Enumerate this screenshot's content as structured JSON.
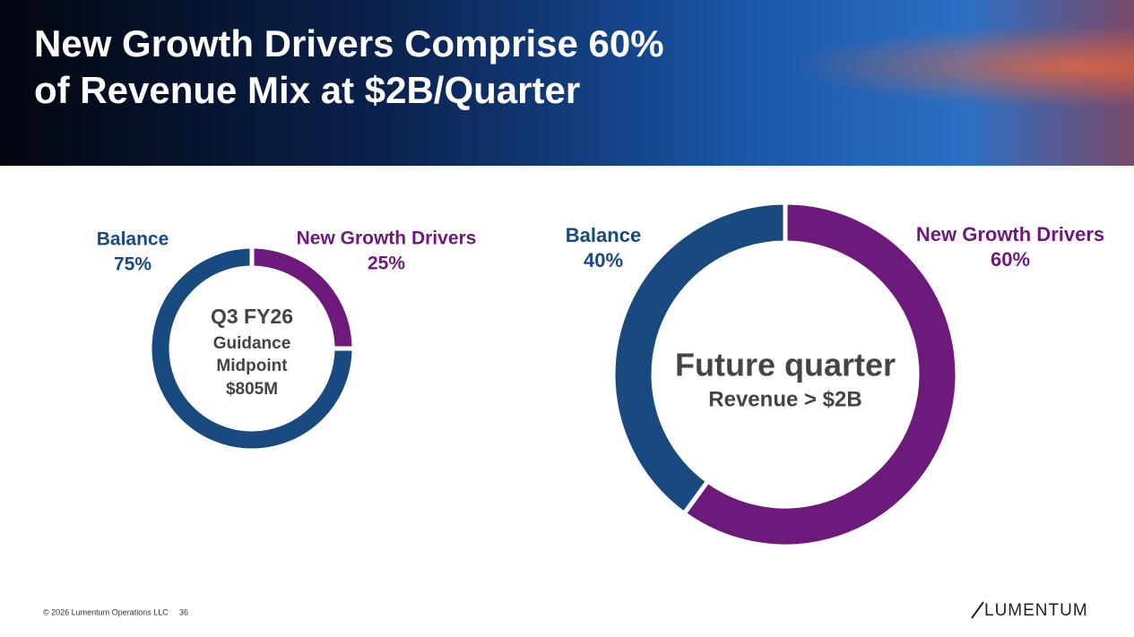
{
  "title": [
    "New Growth Drivers Comprise 60%",
    "of Revenue Mix at $2B/Quarter"
  ],
  "chart_data": [
    {
      "type": "donut",
      "categories": [
        "Balance",
        "New Growth Drivers"
      ],
      "values": [
        75,
        25
      ],
      "value_labels": [
        "75%",
        "25%"
      ],
      "colors": [
        "#184a80",
        "#6e1a7c"
      ],
      "center": [
        "Q3 FY26",
        "Guidance",
        "Midpoint",
        "$805M"
      ]
    },
    {
      "type": "donut",
      "categories": [
        "Balance",
        "New Growth Drivers"
      ],
      "values": [
        40,
        60
      ],
      "value_labels": [
        "40%",
        "60%"
      ],
      "colors": [
        "#184a80",
        "#6e1a7c"
      ],
      "center": [
        "Future quarter",
        "Revenue > $2B"
      ]
    }
  ],
  "footer": {
    "copyright": "© 2026 Lumentum Operations LLC",
    "page": "36",
    "logo": "LUMENTUM"
  }
}
